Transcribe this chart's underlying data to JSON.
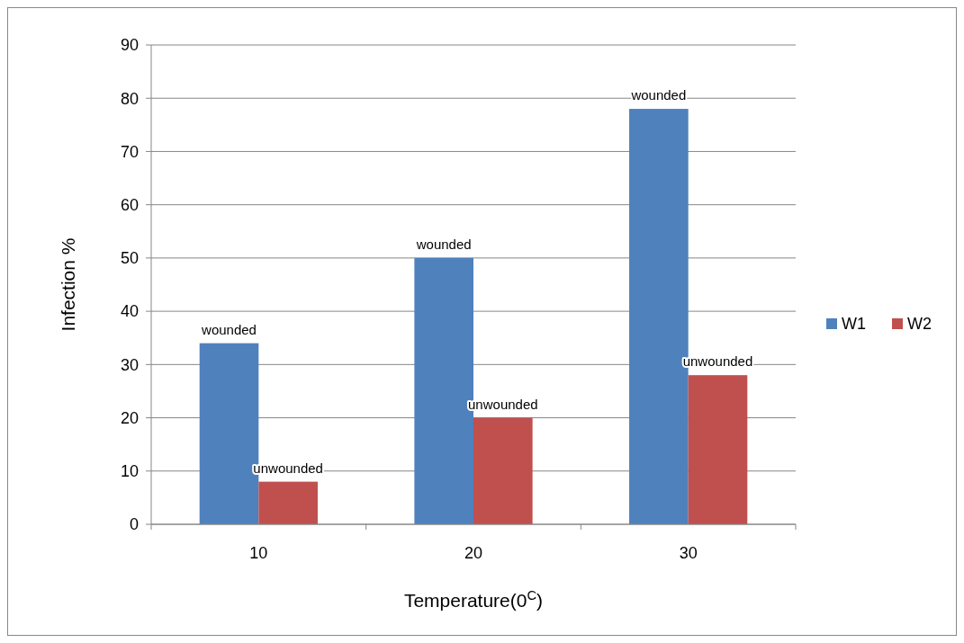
{
  "chart_data": {
    "type": "bar",
    "xlabel": "Temperature(0$^{C}$)",
    "ylabel": "Infection %",
    "categories": [
      "10",
      "20",
      "30"
    ],
    "series": [
      {
        "name": "W1",
        "color": "#4f81bd",
        "values": [
          34,
          50,
          78
        ],
        "value_labels": [
          "wounded",
          "wounded",
          "wounded"
        ]
      },
      {
        "name": "W2",
        "color": "#c0504d",
        "values": [
          8,
          20,
          28
        ],
        "value_labels": [
          "unwounded",
          "unwounded",
          "unwounded"
        ]
      }
    ],
    "ylim": [
      0,
      90
    ],
    "yticks": [
      0,
      10,
      20,
      30,
      40,
      50,
      60,
      70,
      80,
      90
    ],
    "grid": "y",
    "legend": "right"
  }
}
